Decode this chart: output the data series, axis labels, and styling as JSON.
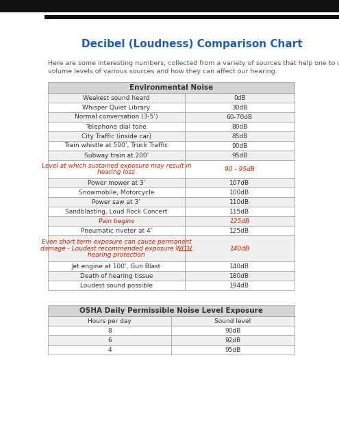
{
  "title": "Decibel (Loudness) Comparison Chart",
  "subtitle_line1": "Here are some interesting numbers, collected from a variety of sources that help one to understand the",
  "subtitle_line2": "volume levels of various sources and how they can affect our hearing.",
  "title_color": "#1f5fa6",
  "table1_header": "Environmental Noise",
  "table1_rows": [
    {
      "source": "Weakest sound heard",
      "level": "0dB",
      "red": false,
      "italic": false,
      "multiline": false
    },
    {
      "source": "Whisper Quiet Library",
      "level": "30dB",
      "red": false,
      "italic": false,
      "multiline": false
    },
    {
      "source": "Normal conversation (3-5’)",
      "level": "60-70dB",
      "red": false,
      "italic": false,
      "multiline": false
    },
    {
      "source": "Telephone dial tone",
      "level": "80dB",
      "red": false,
      "italic": false,
      "multiline": false
    },
    {
      "source": "City Traffic (inside car)",
      "level": "85dB",
      "red": false,
      "italic": false,
      "multiline": false
    },
    {
      "source": "Train whistle at 500’, Truck Traffic",
      "level": "90dB",
      "red": false,
      "italic": false,
      "multiline": false
    },
    {
      "source": "Subway train at 200’",
      "level": "95dB",
      "red": false,
      "italic": false,
      "multiline": false
    },
    {
      "source": "Level at which sustained exposure may result in\nhearing loss",
      "level": "90 - 95dB",
      "red": true,
      "italic": true,
      "multiline": true
    },
    {
      "source": "Power mower at 3’",
      "level": "107dB",
      "red": false,
      "italic": false,
      "multiline": false
    },
    {
      "source": "Snowmobile, Motorcycle",
      "level": "100dB",
      "red": false,
      "italic": false,
      "multiline": false
    },
    {
      "source": "Power saw at 3’",
      "level": "110dB",
      "red": false,
      "italic": false,
      "multiline": false
    },
    {
      "source": "Sandblasting, Loud Rock Concert",
      "level": "115dB",
      "red": false,
      "italic": false,
      "multiline": false
    },
    {
      "source": "Pain begins",
      "level": "125dB",
      "red": true,
      "italic": true,
      "multiline": false
    },
    {
      "source": "Pneumatic riveter at 4’",
      "level": "125dB",
      "red": false,
      "italic": false,
      "multiline": false
    },
    {
      "source": "Even short term exposure can cause permanent\ndamage - Loudest recommended exposure WITH\nhearing protection",
      "level": "140dB",
      "red": true,
      "italic": true,
      "multiline": true
    },
    {
      "source": "Jet engine at 100’, Gun Blast",
      "level": "140dB",
      "red": false,
      "italic": false,
      "multiline": false
    },
    {
      "source": "Death of hearing tissue",
      "level": "180dB",
      "red": false,
      "italic": false,
      "multiline": false
    },
    {
      "source": "Loudest sound possible",
      "level": "194dB",
      "red": false,
      "italic": false,
      "multiline": false
    }
  ],
  "table2_header": "OSHA Daily Permissible Noise Level Exposure",
  "table2_col1": "Hours per day",
  "table2_col2": "Sound level",
  "table2_rows": [
    {
      "hours": "8",
      "level": "90dB"
    },
    {
      "hours": "6",
      "level": "92dB"
    },
    {
      "hours": "4",
      "level": "95dB"
    }
  ],
  "bg_color": "#ffffff",
  "header_bg": "#d4d4d4",
  "row_bg_white": "#ffffff",
  "row_bg_light": "#f0f0f0",
  "border_color": "#999999",
  "text_color": "#333333",
  "red_color": "#cc2200",
  "black_bar_color": "#111111"
}
